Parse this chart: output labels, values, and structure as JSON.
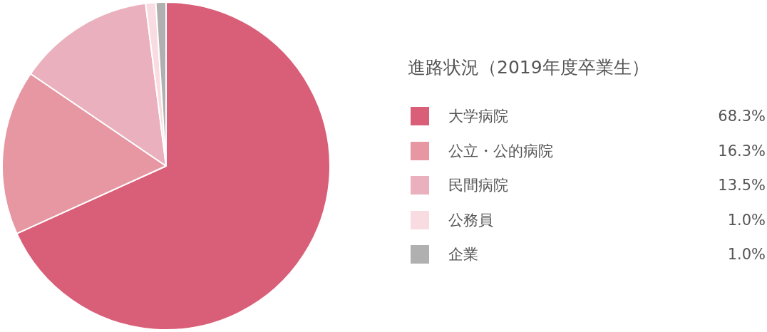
{
  "chart_data": {
    "type": "pie",
    "title": "進路状況（2019年度卒業生）",
    "categories": [
      "大学病院",
      "公立・公的病院",
      "民間病院",
      "公務員",
      "企業"
    ],
    "values": [
      68.3,
      16.3,
      13.5,
      1.0,
      1.0
    ],
    "colors": [
      "#d95f78",
      "#e797a2",
      "#eab0bd",
      "#f9dce2",
      "#b0b0b0"
    ],
    "value_labels": [
      "68.3%",
      "16.3%",
      "13.5%",
      "1.0%",
      "1.0%"
    ],
    "legend": "right"
  }
}
